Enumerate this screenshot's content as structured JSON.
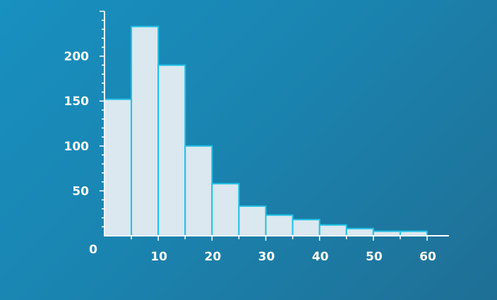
{
  "chart_data": {
    "type": "bar",
    "title": "",
    "xlabel": "",
    "ylabel": "",
    "bins": [
      {
        "start": 0,
        "end": 5,
        "value": 152
      },
      {
        "start": 5,
        "end": 10,
        "value": 233
      },
      {
        "start": 10,
        "end": 15,
        "value": 190
      },
      {
        "start": 15,
        "end": 20,
        "value": 100
      },
      {
        "start": 20,
        "end": 25,
        "value": 58
      },
      {
        "start": 25,
        "end": 30,
        "value": 33
      },
      {
        "start": 30,
        "end": 35,
        "value": 23
      },
      {
        "start": 35,
        "end": 40,
        "value": 18
      },
      {
        "start": 40,
        "end": 45,
        "value": 12
      },
      {
        "start": 45,
        "end": 50,
        "value": 8
      },
      {
        "start": 50,
        "end": 55,
        "value": 5
      },
      {
        "start": 55,
        "end": 60,
        "value": 5
      }
    ],
    "xlim": [
      0,
      60
    ],
    "ylim": [
      0,
      250
    ],
    "x_ticks": [
      10,
      20,
      30,
      40,
      50,
      60
    ],
    "y_ticks": [
      50,
      100,
      150,
      200
    ],
    "origin_label": "0",
    "grid": false,
    "colors": {
      "bar_fill": "#dbe8ef",
      "bar_edge": "#1fc1e6",
      "axis": "#ffffff",
      "background": "#1a84b0"
    }
  }
}
